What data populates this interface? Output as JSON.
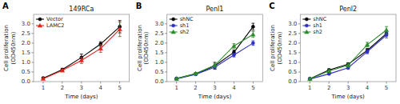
{
  "chart_data": [
    {
      "type": "line",
      "panel_label": "A",
      "title": "149RCa",
      "xlabel": "Time (days)",
      "ylabel": [
        "Cell proliferation",
        "(OD450nm)"
      ],
      "x": [
        1,
        2,
        3,
        4,
        5
      ],
      "xlim": [
        0.5,
        5.5
      ],
      "xticks": [
        1,
        2,
        3,
        4,
        5
      ],
      "ylim": [
        0,
        3.49
      ],
      "yticks": [
        0.0,
        0.5,
        1.0,
        1.5,
        2.0,
        2.5,
        3.0
      ],
      "grid": false,
      "legend": "upper left",
      "series": [
        {
          "name": "Vector",
          "color": "#000000",
          "marker": "circle",
          "values": [
            0.18,
            0.62,
            1.25,
            1.95,
            2.85
          ],
          "errors": [
            0.03,
            0.07,
            0.18,
            0.12,
            0.32
          ]
        },
        {
          "name": "LAMC2",
          "color": "#e8211d",
          "marker": "triangle",
          "values": [
            0.15,
            0.58,
            1.1,
            1.72,
            2.72
          ],
          "errors": [
            0.03,
            0.06,
            0.16,
            0.2,
            0.38
          ]
        }
      ]
    },
    {
      "type": "line",
      "panel_label": "B",
      "title": "Penl1",
      "xlabel": "Time (days)",
      "ylabel": [
        "Cell proliferation",
        "(OD450nm)"
      ],
      "x": [
        1,
        2,
        3,
        4,
        5
      ],
      "xlim": [
        0.5,
        5.5
      ],
      "xticks": [
        1,
        2,
        3,
        4,
        5
      ],
      "ylim": [
        0,
        3.49
      ],
      "yticks": [
        0.0,
        0.5,
        1.0,
        1.5,
        2.0,
        2.5,
        3.0
      ],
      "grid": false,
      "legend": "upper left",
      "series": [
        {
          "name": "shNC",
          "color": "#000000",
          "marker": "circle",
          "values": [
            0.16,
            0.4,
            0.82,
            1.52,
            2.85
          ],
          "errors": [
            0.02,
            0.05,
            0.18,
            0.12,
            0.18
          ]
        },
        {
          "name": "sh1",
          "color": "#3030c8",
          "marker": "circle",
          "values": [
            0.14,
            0.38,
            0.75,
            1.38,
            2.0
          ],
          "errors": [
            0.02,
            0.04,
            0.08,
            0.1,
            0.12
          ]
        },
        {
          "name": "sh2",
          "color": "#2e8b2e",
          "marker": "triangle",
          "values": [
            0.15,
            0.42,
            0.85,
            1.85,
            2.45
          ],
          "errors": [
            0.02,
            0.05,
            0.1,
            0.12,
            0.15
          ]
        }
      ]
    },
    {
      "type": "line",
      "panel_label": "C",
      "title": "Penl2",
      "xlabel": "Time (days)",
      "ylabel": [
        "Cell proliferation",
        "(OD450nm)"
      ],
      "x": [
        1,
        2,
        3,
        4,
        5
      ],
      "xlim": [
        0.5,
        5.5
      ],
      "xticks": [
        1,
        2,
        3,
        4,
        5
      ],
      "ylim": [
        0,
        3.49
      ],
      "yticks": [
        0.0,
        0.5,
        1.0,
        1.5,
        2.0,
        2.5,
        3.0
      ],
      "grid": false,
      "legend": "upper left",
      "series": [
        {
          "name": "shNC",
          "color": "#000000",
          "marker": "circle",
          "values": [
            0.15,
            0.6,
            0.9,
            1.62,
            2.5
          ],
          "errors": [
            0.02,
            0.06,
            0.08,
            0.1,
            0.12
          ]
        },
        {
          "name": "sh1",
          "color": "#3030c8",
          "marker": "circle",
          "values": [
            0.13,
            0.4,
            0.72,
            1.55,
            2.42
          ],
          "errors": [
            0.02,
            0.05,
            0.08,
            0.1,
            0.15
          ]
        },
        {
          "name": "sh2",
          "color": "#2e8b2e",
          "marker": "triangle",
          "values": [
            0.14,
            0.55,
            0.85,
            1.92,
            2.68
          ],
          "errors": [
            0.02,
            0.06,
            0.1,
            0.12,
            0.18
          ]
        }
      ]
    }
  ]
}
